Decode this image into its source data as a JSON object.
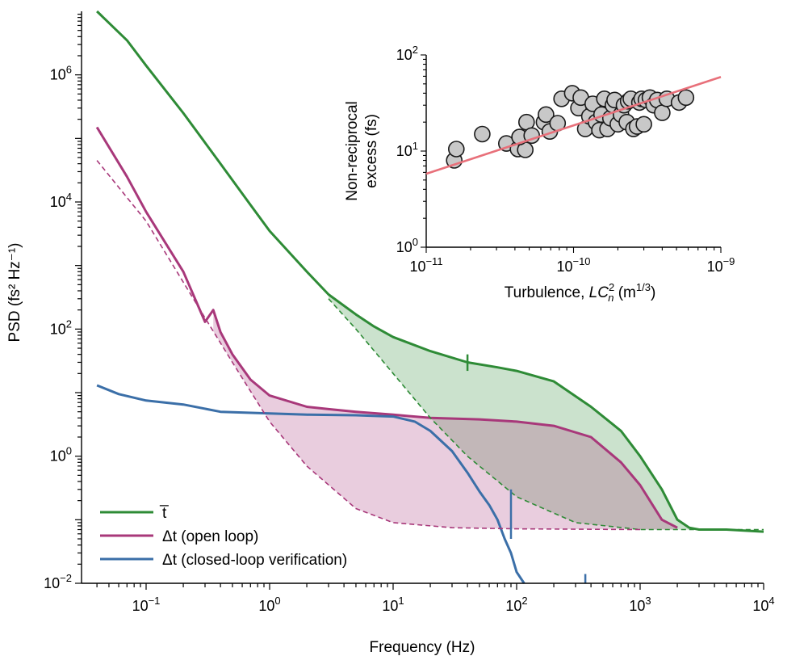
{
  "chart_data": [
    {
      "type": "line",
      "xlabel": "Frequency (Hz)",
      "ylabel": "PSD (fs² Hz⁻¹)",
      "xscale": "log",
      "yscale": "log",
      "xlim": [
        0.03,
        10000
      ],
      "ylim": [
        0.01,
        10000000
      ],
      "x_ticks": [
        {
          "value": 0.1,
          "base": "10",
          "exp": "−1"
        },
        {
          "value": 1,
          "base": "10",
          "exp": "0"
        },
        {
          "value": 10,
          "base": "10",
          "exp": "1"
        },
        {
          "value": 100,
          "base": "10",
          "exp": "2"
        },
        {
          "value": 1000,
          "base": "10",
          "exp": "3"
        },
        {
          "value": 10000,
          "base": "10",
          "exp": "4"
        }
      ],
      "y_ticks": [
        {
          "value": 0.01,
          "base": "10",
          "exp": "−2"
        },
        {
          "value": 1,
          "base": "10",
          "exp": "0"
        },
        {
          "value": 100,
          "base": "10",
          "exp": "2"
        },
        {
          "value": 10000,
          "base": "10",
          "exp": "4"
        },
        {
          "value": 1000000,
          "base": "10",
          "exp": "6"
        }
      ],
      "grid": false,
      "legend_position": "bottom-left",
      "series": [
        {
          "key": "tbar",
          "name": "t̅",
          "color": "#2e8b36",
          "x": [
            0.04,
            0.07,
            0.1,
            0.2,
            0.4,
            0.7,
            1,
            2,
            3,
            5,
            7,
            10,
            20,
            40,
            70,
            100,
            200,
            400,
            700,
            1000,
            1500,
            2000,
            2500,
            3000,
            5000,
            10000
          ],
          "y": [
            10000000,
            3500000,
            1400000,
            250000,
            40000,
            9000,
            3500,
            800,
            350,
            170,
            110,
            75,
            45,
            30,
            25,
            22,
            15,
            6,
            2.5,
            1,
            0.3,
            0.1,
            0.075,
            0.07,
            0.07,
            0.065
          ]
        },
        {
          "key": "dt_open",
          "name": "Δt (open loop)",
          "color": "#a8387a",
          "x": [
            0.04,
            0.07,
            0.1,
            0.2,
            0.3,
            0.35,
            0.4,
            0.5,
            0.7,
            1,
            2,
            3,
            5,
            10,
            20,
            50,
            100,
            200,
            400,
            700,
            1000,
            1500,
            2000
          ],
          "y": [
            150000,
            25000,
            7000,
            800,
            130,
            200,
            90,
            40,
            16,
            9,
            6,
            5.5,
            5,
            4.5,
            4,
            3.8,
            3.5,
            3,
            2,
            0.8,
            0.35,
            0.1,
            0.075
          ]
        },
        {
          "key": "dt_closed",
          "name": "Δt (closed-loop verification)",
          "color": "#3b6fa8",
          "x": [
            0.04,
            0.06,
            0.1,
            0.2,
            0.4,
            1,
            2,
            5,
            10,
            15,
            20,
            30,
            40,
            50,
            60,
            70,
            80,
            90,
            100,
            115
          ],
          "y": [
            13,
            9.5,
            7.5,
            6.5,
            5,
            4.7,
            4.5,
            4.4,
            4.2,
            3.5,
            2.5,
            1.2,
            0.55,
            0.28,
            0.17,
            0.1,
            0.05,
            0.03,
            0.015,
            0.01
          ]
        },
        {
          "key": "tbar_fit",
          "name": "",
          "color": "#2e8b36",
          "dashed": true,
          "x": [
            3,
            5,
            10,
            20,
            40,
            100,
            300,
            1000,
            10000
          ],
          "y": [
            300,
            100,
            20,
            4,
            1,
            0.23,
            0.09,
            0.07,
            0.07
          ]
        },
        {
          "key": "dt_fit",
          "name": "",
          "color": "#a8387a",
          "dashed": true,
          "x": [
            0.04,
            0.1,
            0.3,
            0.5,
            1,
            2,
            5,
            10,
            30,
            100,
            1000
          ],
          "y": [
            45000,
            5000,
            150,
            30,
            3.5,
            0.7,
            0.15,
            0.09,
            0.075,
            0.072,
            0.07
          ]
        }
      ],
      "annotations": [
        {
          "x": 40,
          "y": 22,
          "note": "spike on t̅ trace near 40 Hz"
        },
        {
          "x": 90,
          "y": 0.2,
          "note": "spike on closed-loop trace near 90 Hz"
        }
      ]
    },
    {
      "type": "scatter",
      "xlabel_parts": [
        "Turbulence, ",
        "LC",
        "2",
        "n",
        " (m",
        "1/3",
        ")"
      ],
      "ylabel_lines": [
        "Non-reciprocal",
        "excess (fs)"
      ],
      "xscale": "log",
      "yscale": "log",
      "xlim": [
        1e-11,
        1e-09
      ],
      "ylim": [
        1,
        100
      ],
      "x_ticks": [
        {
          "value": 1e-11,
          "base": "10",
          "exp": "−11"
        },
        {
          "value": 1e-10,
          "base": "10",
          "exp": "−10"
        },
        {
          "value": 1e-09,
          "base": "10",
          "exp": "−9"
        }
      ],
      "y_ticks": [
        {
          "value": 1,
          "base": "10",
          "exp": "0"
        },
        {
          "value": 10,
          "base": "10",
          "exp": "1"
        },
        {
          "value": 100,
          "base": "10",
          "exp": "2"
        }
      ],
      "marker_fill": "#c8c8c8",
      "marker_edge": "#1a1a1a",
      "points": [
        [
          1.55e-11,
          8
        ],
        [
          1.6e-11,
          10.5
        ],
        [
          2.4e-11,
          15
        ],
        [
          3.5e-11,
          12
        ],
        [
          4.2e-11,
          10.5
        ],
        [
          4.7e-11,
          10.3
        ],
        [
          4.3e-11,
          14
        ],
        [
          4.8e-11,
          20
        ],
        [
          5.2e-11,
          14.5
        ],
        [
          6.3e-11,
          20
        ],
        [
          6.5e-11,
          24
        ],
        [
          6.9e-11,
          16
        ],
        [
          7.8e-11,
          19.5
        ],
        [
          8.3e-11,
          35
        ],
        [
          9.8e-11,
          40
        ],
        [
          1.08e-10,
          28
        ],
        [
          1.12e-10,
          36
        ],
        [
          1.2e-10,
          17
        ],
        [
          1.28e-10,
          23
        ],
        [
          1.35e-10,
          31
        ],
        [
          1.42e-10,
          20
        ],
        [
          1.5e-10,
          16.5
        ],
        [
          1.55e-10,
          24
        ],
        [
          1.62e-10,
          35
        ],
        [
          1.7e-10,
          17
        ],
        [
          1.78e-10,
          22
        ],
        [
          1.85e-10,
          30
        ],
        [
          1.9e-10,
          34
        ],
        [
          2e-10,
          19
        ],
        [
          2.1e-10,
          24
        ],
        [
          2.2e-10,
          30
        ],
        [
          2.3e-10,
          20
        ],
        [
          2.35e-10,
          33
        ],
        [
          2.45e-10,
          35
        ],
        [
          2.55e-10,
          17
        ],
        [
          2.7e-10,
          18
        ],
        [
          2.8e-10,
          32
        ],
        [
          2.9e-10,
          35
        ],
        [
          3e-10,
          19
        ],
        [
          3.1e-10,
          34
        ],
        [
          3.3e-10,
          36
        ],
        [
          3.5e-10,
          30
        ],
        [
          3.7e-10,
          34
        ],
        [
          4e-10,
          25
        ],
        [
          4.3e-10,
          35
        ],
        [
          5.2e-10,
          32
        ],
        [
          5.8e-10,
          36
        ]
      ],
      "fit": {
        "color": "#e8707a",
        "x": [
          1e-11,
          1e-09
        ],
        "y": [
          5.8,
          59
        ]
      }
    }
  ]
}
